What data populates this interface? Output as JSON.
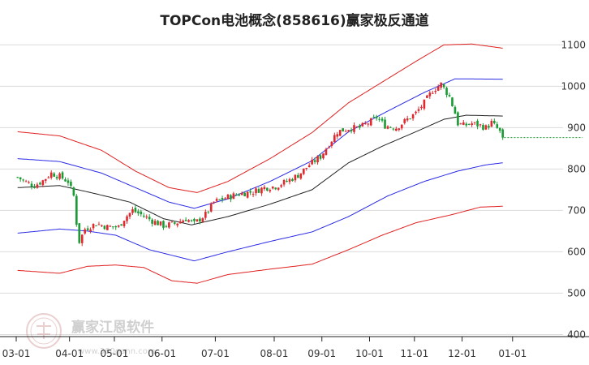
{
  "chart_data": {
    "type": "candlestick",
    "title": "TOPCon电池概念(858616)赢家极反通道",
    "ylim": [
      395,
      1130
    ],
    "y_ticks": [
      400,
      500,
      600,
      700,
      800,
      900,
      1000,
      1100
    ],
    "x_ticks": [
      {
        "label": "03-01",
        "index": 0
      },
      {
        "label": "04-01",
        "index": 19
      },
      {
        "label": "05-01",
        "index": 35
      },
      {
        "label": "06-01",
        "index": 52
      },
      {
        "label": "07-01",
        "index": 71
      },
      {
        "label": "08-01",
        "index": 92
      },
      {
        "label": "09-01",
        "index": 109
      },
      {
        "label": "10-01",
        "index": 126
      },
      {
        "label": "11-01",
        "index": 142
      },
      {
        "label": "12-01",
        "index": 159
      },
      {
        "label": "01-01",
        "index": 177
      }
    ],
    "n_slots": 195,
    "last_close": 876,
    "price_anchors": [
      [
        0,
        780
      ],
      [
        3,
        768
      ],
      [
        6,
        760
      ],
      [
        9,
        772
      ],
      [
        12,
        790
      ],
      [
        15,
        782
      ],
      [
        18,
        770
      ],
      [
        20,
        735
      ],
      [
        21,
        670
      ],
      [
        22,
        625
      ],
      [
        24,
        655
      ],
      [
        28,
        668
      ],
      [
        32,
        660
      ],
      [
        36,
        660
      ],
      [
        38,
        680
      ],
      [
        41,
        700
      ],
      [
        44,
        690
      ],
      [
        48,
        675
      ],
      [
        52,
        663
      ],
      [
        56,
        668
      ],
      [
        60,
        680
      ],
      [
        63,
        668
      ],
      [
        67,
        690
      ],
      [
        70,
        720
      ],
      [
        74,
        730
      ],
      [
        79,
        740
      ],
      [
        84,
        745
      ],
      [
        88,
        755
      ],
      [
        92,
        758
      ],
      [
        96,
        770
      ],
      [
        100,
        785
      ],
      [
        104,
        810
      ],
      [
        108,
        830
      ],
      [
        111,
        860
      ],
      [
        114,
        890
      ],
      [
        118,
        898
      ],
      [
        122,
        900
      ],
      [
        126,
        915
      ],
      [
        128,
        925
      ],
      [
        131,
        905
      ],
      [
        135,
        900
      ],
      [
        139,
        920
      ],
      [
        142,
        935
      ],
      [
        145,
        960
      ],
      [
        148,
        990
      ],
      [
        151,
        1005
      ],
      [
        154,
        975
      ],
      [
        156,
        935
      ],
      [
        157,
        910
      ],
      [
        159,
        905
      ],
      [
        162,
        910
      ],
      [
        165,
        905
      ],
      [
        167,
        900
      ],
      [
        169,
        912
      ],
      [
        171,
        898
      ],
      [
        173,
        880
      ]
    ],
    "channel_anchors": {
      "ma": [
        [
          0,
          755
        ],
        [
          15,
          760
        ],
        [
          28,
          740
        ],
        [
          40,
          720
        ],
        [
          52,
          680
        ],
        [
          62,
          665
        ],
        [
          75,
          685
        ],
        [
          90,
          715
        ],
        [
          105,
          750
        ],
        [
          118,
          815
        ],
        [
          130,
          855
        ],
        [
          142,
          890
        ],
        [
          152,
          920
        ],
        [
          160,
          930
        ],
        [
          173,
          928
        ]
      ],
      "blue_up": [
        [
          0,
          825
        ],
        [
          15,
          818
        ],
        [
          30,
          790
        ],
        [
          42,
          755
        ],
        [
          54,
          720
        ],
        [
          63,
          705
        ],
        [
          75,
          728
        ],
        [
          90,
          770
        ],
        [
          105,
          820
        ],
        [
          118,
          890
        ],
        [
          132,
          940
        ],
        [
          145,
          985
        ],
        [
          156,
          1018
        ],
        [
          173,
          1017
        ]
      ],
      "blue_lo": [
        [
          0,
          645
        ],
        [
          15,
          655
        ],
        [
          25,
          650
        ],
        [
          35,
          640
        ],
        [
          47,
          605
        ],
        [
          63,
          578
        ],
        [
          75,
          600
        ],
        [
          90,
          625
        ],
        [
          105,
          648
        ],
        [
          118,
          685
        ],
        [
          132,
          735
        ],
        [
          145,
          770
        ],
        [
          157,
          795
        ],
        [
          167,
          810
        ],
        [
          173,
          815
        ]
      ],
      "red_up": [
        [
          0,
          890
        ],
        [
          15,
          880
        ],
        [
          30,
          845
        ],
        [
          42,
          795
        ],
        [
          54,
          755
        ],
        [
          64,
          743
        ],
        [
          75,
          770
        ],
        [
          90,
          825
        ],
        [
          105,
          888
        ],
        [
          118,
          960
        ],
        [
          130,
          1010
        ],
        [
          142,
          1060
        ],
        [
          152,
          1100
        ],
        [
          162,
          1102
        ],
        [
          173,
          1092
        ]
      ],
      "red_lo": [
        [
          0,
          555
        ],
        [
          15,
          548
        ],
        [
          25,
          565
        ],
        [
          35,
          568
        ],
        [
          45,
          562
        ],
        [
          55,
          530
        ],
        [
          64,
          524
        ],
        [
          75,
          545
        ],
        [
          90,
          558
        ],
        [
          105,
          570
        ],
        [
          118,
          605
        ],
        [
          130,
          640
        ],
        [
          142,
          670
        ],
        [
          155,
          690
        ],
        [
          165,
          708
        ],
        [
          173,
          710
        ]
      ]
    },
    "colors": {
      "up": "#e0282f",
      "down": "#1a9b35",
      "ma": "#222222",
      "blue_band": "#2a2ae6",
      "red_band": "#e02020",
      "grid": "#dcdcdc",
      "last_price_line": "#1a9b35"
    }
  },
  "watermark": {
    "text": "赢家江恩软件",
    "url": "www.360gann.com"
  }
}
